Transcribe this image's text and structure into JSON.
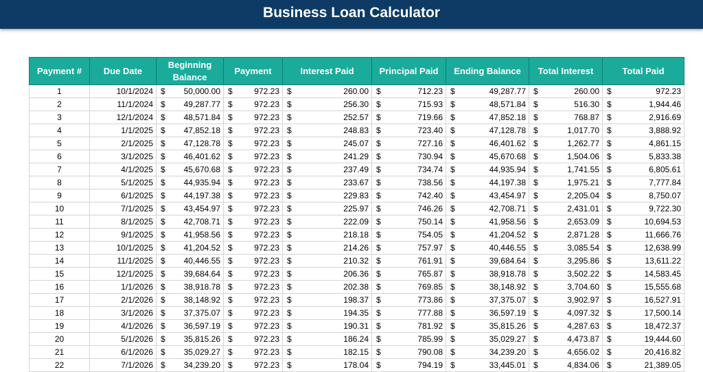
{
  "header": {
    "title": "Business Loan Calculator"
  },
  "table": {
    "currency": "$",
    "columns": [
      "Payment #",
      "Due Date",
      "Beginning Balance",
      "Payment",
      "Interest Paid",
      "Principal Paid",
      "Ending Balance",
      "Total Interest",
      "Total Paid"
    ],
    "rows": [
      [
        "1",
        "10/1/2024",
        "50,000.00",
        "972.23",
        "260.00",
        "712.23",
        "49,287.77",
        "260.00",
        "972.23"
      ],
      [
        "2",
        "11/1/2024",
        "49,287.77",
        "972.23",
        "256.30",
        "715.93",
        "48,571.84",
        "516.30",
        "1,944.46"
      ],
      [
        "3",
        "12/1/2024",
        "48,571.84",
        "972.23",
        "252.57",
        "719.66",
        "47,852.18",
        "768.87",
        "2,916.69"
      ],
      [
        "4",
        "1/1/2025",
        "47,852.18",
        "972.23",
        "248.83",
        "723.40",
        "47,128.78",
        "1,017.70",
        "3,888.92"
      ],
      [
        "5",
        "2/1/2025",
        "47,128.78",
        "972.23",
        "245.07",
        "727.16",
        "46,401.62",
        "1,262.77",
        "4,861.15"
      ],
      [
        "6",
        "3/1/2025",
        "46,401.62",
        "972.23",
        "241.29",
        "730.94",
        "45,670.68",
        "1,504.06",
        "5,833.38"
      ],
      [
        "7",
        "4/1/2025",
        "45,670.68",
        "972.23",
        "237.49",
        "734.74",
        "44,935.94",
        "1,741.55",
        "6,805.61"
      ],
      [
        "8",
        "5/1/2025",
        "44,935.94",
        "972.23",
        "233.67",
        "738.56",
        "44,197.38",
        "1,975.21",
        "7,777.84"
      ],
      [
        "9",
        "6/1/2025",
        "44,197.38",
        "972.23",
        "229.83",
        "742.40",
        "43,454.97",
        "2,205.04",
        "8,750.07"
      ],
      [
        "10",
        "7/1/2025",
        "43,454.97",
        "972.23",
        "225.97",
        "746.26",
        "42,708.71",
        "2,431.01",
        "9,722.30"
      ],
      [
        "11",
        "8/1/2025",
        "42,708.71",
        "972.23",
        "222.09",
        "750.14",
        "41,958.56",
        "2,653.09",
        "10,694.53"
      ],
      [
        "12",
        "9/1/2025",
        "41,958.56",
        "972.23",
        "218.18",
        "754.05",
        "41,204.52",
        "2,871.28",
        "11,666.76"
      ],
      [
        "13",
        "10/1/2025",
        "41,204.52",
        "972.23",
        "214.26",
        "757.97",
        "40,446.55",
        "3,085.54",
        "12,638.99"
      ],
      [
        "14",
        "11/1/2025",
        "40,446.55",
        "972.23",
        "210.32",
        "761.91",
        "39,684.64",
        "3,295.86",
        "13,611.22"
      ],
      [
        "15",
        "12/1/2025",
        "39,684.64",
        "972.23",
        "206.36",
        "765.87",
        "38,918.78",
        "3,502.22",
        "14,583.45"
      ],
      [
        "16",
        "1/1/2026",
        "38,918.78",
        "972.23",
        "202.38",
        "769.85",
        "38,148.92",
        "3,704.60",
        "15,555.68"
      ],
      [
        "17",
        "2/1/2026",
        "38,148.92",
        "972.23",
        "198.37",
        "773.86",
        "37,375.07",
        "3,902.97",
        "16,527.91"
      ],
      [
        "18",
        "3/1/2026",
        "37,375.07",
        "972.23",
        "194.35",
        "777.88",
        "36,597.19",
        "4,097.32",
        "17,500.14"
      ],
      [
        "19",
        "4/1/2026",
        "36,597.19",
        "972.23",
        "190.31",
        "781.92",
        "35,815.26",
        "4,287.63",
        "18,472.37"
      ],
      [
        "20",
        "5/1/2026",
        "35,815.26",
        "972.23",
        "186.24",
        "785.99",
        "35,029.27",
        "4,473.87",
        "19,444.60"
      ],
      [
        "21",
        "6/1/2026",
        "35,029.27",
        "972.23",
        "182.15",
        "790.08",
        "34,239.20",
        "4,656.02",
        "20,416.82"
      ],
      [
        "22",
        "7/1/2026",
        "34,239.20",
        "972.23",
        "178.04",
        "794.19",
        "33,445.01",
        "4,834.06",
        "21,389.05"
      ]
    ]
  }
}
